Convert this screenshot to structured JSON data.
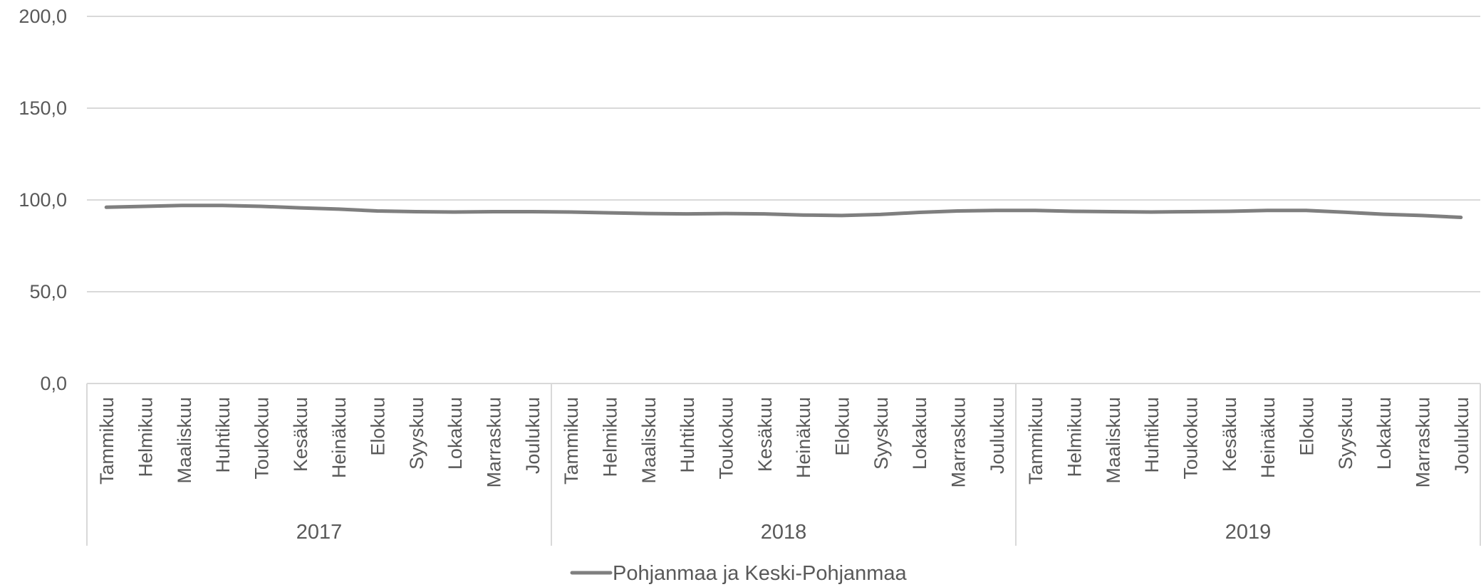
{
  "chart_data": {
    "type": "line",
    "title": "",
    "xlabel": "",
    "ylabel": "",
    "ylim": [
      0,
      200
    ],
    "y_ticks": [
      "0,0",
      "50,0",
      "100,0",
      "150,0",
      "200,0"
    ],
    "y_tick_values": [
      0,
      50,
      100,
      150,
      200
    ],
    "grid": true,
    "legend_position": "bottom",
    "years": [
      "2017",
      "2018",
      "2019"
    ],
    "months": [
      "Tammikuu",
      "Helmikuu",
      "Maaliskuu",
      "Huhtikuu",
      "Toukokuu",
      "Kesäkuu",
      "Heinäkuu",
      "Elokuu",
      "Syyskuu",
      "Lokakuu",
      "Marraskuu",
      "Joulukuu"
    ],
    "series": [
      {
        "name": "Pohjanmaa ja Keski-Pohjanmaa",
        "color": "#7f7f7f",
        "values": [
          96.0,
          96.5,
          97.0,
          97.0,
          96.5,
          95.7,
          95.0,
          94.0,
          93.6,
          93.4,
          93.6,
          93.6,
          93.4,
          93.0,
          92.6,
          92.4,
          92.6,
          92.4,
          91.8,
          91.5,
          92.1,
          93.2,
          94.0,
          94.3,
          94.3,
          93.8,
          93.6,
          93.4,
          93.6,
          93.8,
          94.3,
          94.3,
          93.3,
          92.2,
          91.5,
          90.5
        ]
      }
    ]
  },
  "colors": {
    "gridline": "#d9d9d9",
    "axis": "#d9d9d9",
    "text": "#595959",
    "series": "#7f7f7f"
  }
}
